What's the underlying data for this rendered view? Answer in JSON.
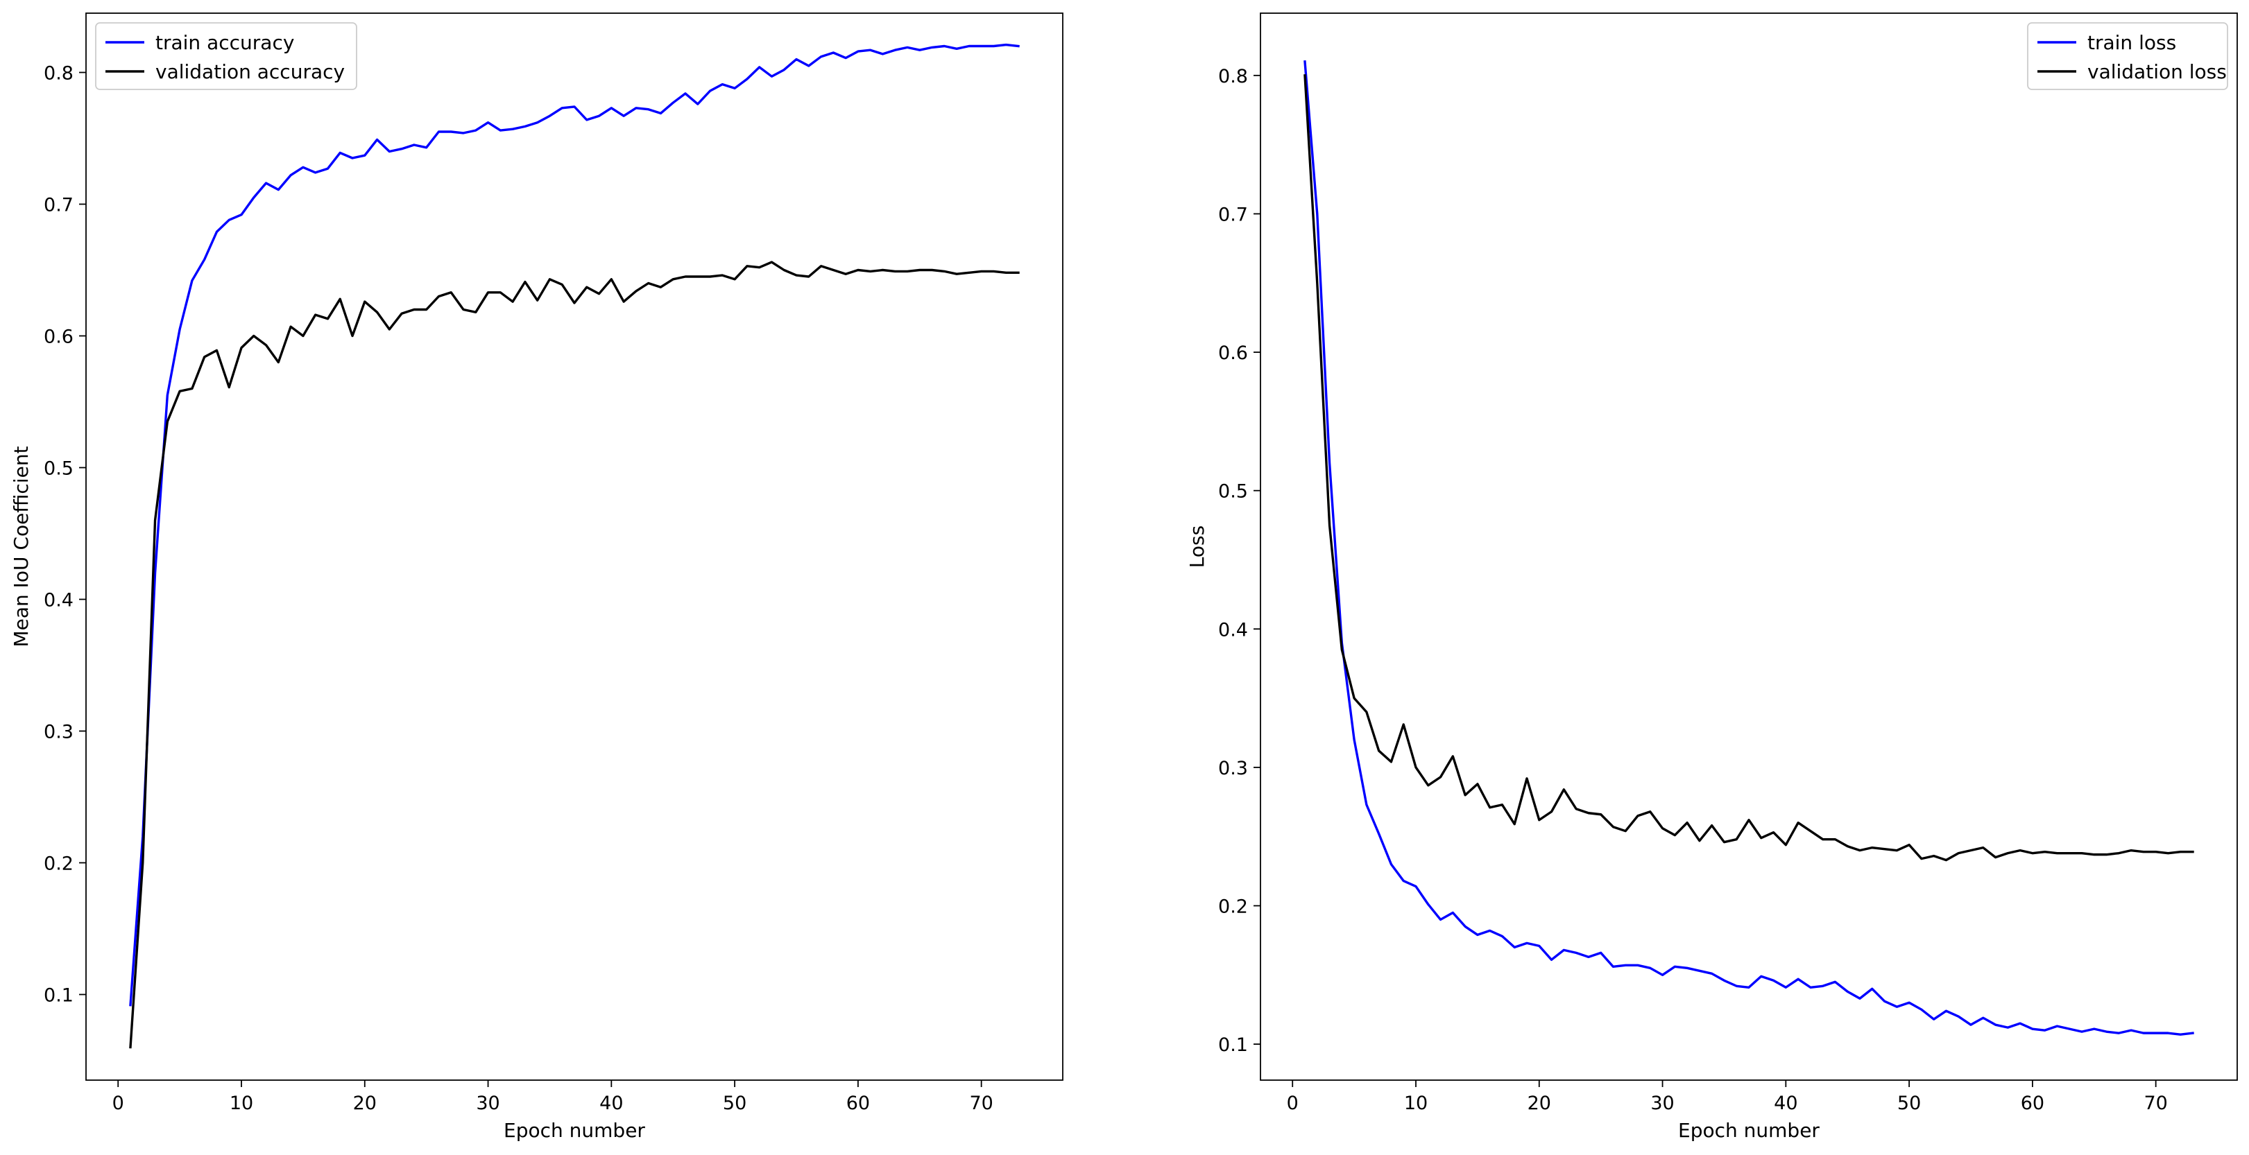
{
  "chart_data": [
    {
      "type": "line",
      "title": "",
      "xlabel": "Epoch number",
      "ylabel": "Mean IoU Coefficient",
      "xlim": [
        -2.6,
        76.6
      ],
      "ylim": [
        0.035,
        0.845
      ],
      "xticks": [
        0,
        10,
        20,
        30,
        40,
        50,
        60,
        70
      ],
      "yticks": [
        0.1,
        0.2,
        0.3,
        0.4,
        0.5,
        0.6,
        0.7,
        0.8
      ],
      "grid": false,
      "legend_position": "top-left",
      "x": [
        1,
        2,
        3,
        4,
        5,
        6,
        7,
        8,
        9,
        10,
        11,
        12,
        13,
        14,
        15,
        16,
        17,
        18,
        19,
        20,
        21,
        22,
        23,
        24,
        25,
        26,
        27,
        28,
        29,
        30,
        31,
        32,
        33,
        34,
        35,
        36,
        37,
        38,
        39,
        40,
        41,
        42,
        43,
        44,
        45,
        46,
        47,
        48,
        49,
        50,
        51,
        52,
        53,
        54,
        55,
        56,
        57,
        58,
        59,
        60,
        61,
        62,
        63,
        64,
        65,
        66,
        67,
        68,
        69,
        70,
        71,
        72,
        73
      ],
      "series": [
        {
          "name": "train accuracy",
          "color": "#0000ff",
          "values": [
            0.092,
            0.22,
            0.42,
            0.555,
            0.605,
            0.642,
            0.658,
            0.679,
            0.688,
            0.692,
            0.705,
            0.716,
            0.711,
            0.722,
            0.728,
            0.724,
            0.727,
            0.739,
            0.735,
            0.737,
            0.749,
            0.74,
            0.742,
            0.745,
            0.743,
            0.755,
            0.755,
            0.754,
            0.756,
            0.762,
            0.756,
            0.757,
            0.759,
            0.762,
            0.767,
            0.773,
            0.774,
            0.764,
            0.767,
            0.773,
            0.767,
            0.773,
            0.772,
            0.769,
            0.777,
            0.784,
            0.776,
            0.786,
            0.791,
            0.788,
            0.795,
            0.804,
            0.797,
            0.802,
            0.81,
            0.805,
            0.812,
            0.815,
            0.811,
            0.816,
            0.817,
            0.814,
            0.817,
            0.819,
            0.817,
            0.819,
            0.82,
            0.818,
            0.82,
            0.82,
            0.82,
            0.821,
            0.82
          ]
        },
        {
          "name": "validation accuracy",
          "color": "#000000",
          "values": [
            0.06,
            0.2,
            0.46,
            0.535,
            0.558,
            0.56,
            0.584,
            0.589,
            0.561,
            0.591,
            0.6,
            0.593,
            0.58,
            0.607,
            0.6,
            0.616,
            0.613,
            0.628,
            0.6,
            0.626,
            0.618,
            0.605,
            0.617,
            0.62,
            0.62,
            0.63,
            0.633,
            0.62,
            0.618,
            0.633,
            0.633,
            0.626,
            0.641,
            0.627,
            0.643,
            0.639,
            0.625,
            0.637,
            0.632,
            0.643,
            0.626,
            0.634,
            0.64,
            0.637,
            0.643,
            0.645,
            0.645,
            0.645,
            0.646,
            0.643,
            0.653,
            0.652,
            0.656,
            0.65,
            0.646,
            0.645,
            0.653,
            0.65,
            0.647,
            0.65,
            0.649,
            0.65,
            0.649,
            0.649,
            0.65,
            0.65,
            0.649,
            0.647,
            0.648,
            0.649,
            0.649,
            0.648,
            0.648
          ]
        }
      ]
    },
    {
      "type": "line",
      "title": "",
      "xlabel": "Epoch number",
      "ylabel": "Loss",
      "xlim": [
        -2.6,
        76.6
      ],
      "ylim": [
        0.074,
        0.845
      ],
      "xticks": [
        0,
        10,
        20,
        30,
        40,
        50,
        60,
        70
      ],
      "yticks": [
        0.1,
        0.2,
        0.3,
        0.4,
        0.5,
        0.6,
        0.7,
        0.8
      ],
      "grid": false,
      "legend_position": "top-right",
      "x": [
        1,
        2,
        3,
        4,
        5,
        6,
        7,
        8,
        9,
        10,
        11,
        12,
        13,
        14,
        15,
        16,
        17,
        18,
        19,
        20,
        21,
        22,
        23,
        24,
        25,
        26,
        27,
        28,
        29,
        30,
        31,
        32,
        33,
        34,
        35,
        36,
        37,
        38,
        39,
        40,
        41,
        42,
        43,
        44,
        45,
        46,
        47,
        48,
        49,
        50,
        51,
        52,
        53,
        54,
        55,
        56,
        57,
        58,
        59,
        60,
        61,
        62,
        63,
        64,
        65,
        66,
        67,
        68,
        69,
        70,
        71,
        72,
        73
      ],
      "series": [
        {
          "name": "train loss",
          "color": "#0000ff",
          "values": [
            0.81,
            0.7,
            0.52,
            0.39,
            0.32,
            0.273,
            0.252,
            0.23,
            0.218,
            0.214,
            0.201,
            0.19,
            0.195,
            0.185,
            0.179,
            0.182,
            0.178,
            0.17,
            0.173,
            0.171,
            0.161,
            0.168,
            0.166,
            0.163,
            0.166,
            0.156,
            0.157,
            0.157,
            0.155,
            0.15,
            0.156,
            0.155,
            0.153,
            0.151,
            0.146,
            0.142,
            0.141,
            0.149,
            0.146,
            0.141,
            0.147,
            0.141,
            0.142,
            0.145,
            0.138,
            0.133,
            0.14,
            0.131,
            0.127,
            0.13,
            0.125,
            0.118,
            0.124,
            0.12,
            0.114,
            0.119,
            0.114,
            0.112,
            0.115,
            0.111,
            0.11,
            0.113,
            0.111,
            0.109,
            0.111,
            0.109,
            0.108,
            0.11,
            0.108,
            0.108,
            0.108,
            0.107,
            0.108
          ]
        },
        {
          "name": "validation loss",
          "color": "#000000",
          "values": [
            0.8,
            0.65,
            0.475,
            0.385,
            0.35,
            0.34,
            0.312,
            0.304,
            0.331,
            0.3,
            0.287,
            0.293,
            0.308,
            0.28,
            0.288,
            0.271,
            0.273,
            0.259,
            0.292,
            0.262,
            0.268,
            0.284,
            0.27,
            0.267,
            0.266,
            0.257,
            0.254,
            0.265,
            0.268,
            0.256,
            0.251,
            0.26,
            0.247,
            0.258,
            0.246,
            0.248,
            0.262,
            0.249,
            0.253,
            0.244,
            0.26,
            0.254,
            0.248,
            0.248,
            0.243,
            0.24,
            0.242,
            0.241,
            0.24,
            0.244,
            0.234,
            0.236,
            0.233,
            0.238,
            0.24,
            0.242,
            0.235,
            0.238,
            0.24,
            0.238,
            0.239,
            0.238,
            0.238,
            0.238,
            0.237,
            0.237,
            0.238,
            0.24,
            0.239,
            0.239,
            0.238,
            0.239,
            0.239
          ]
        }
      ]
    }
  ]
}
